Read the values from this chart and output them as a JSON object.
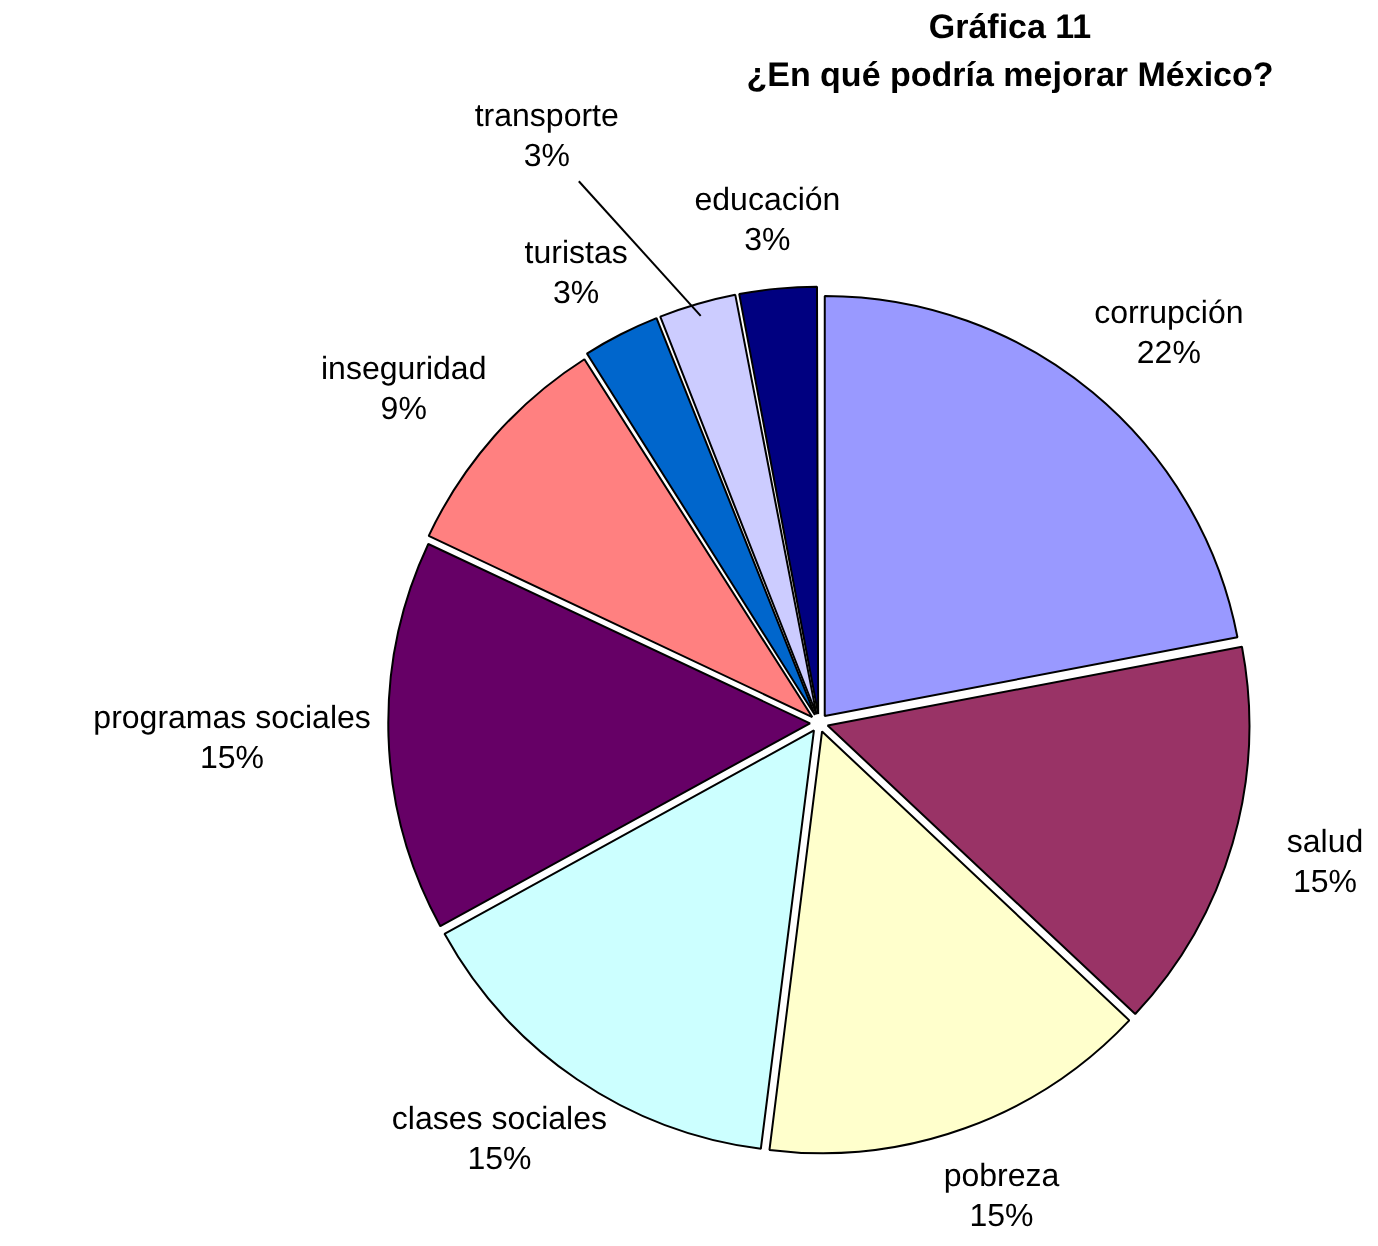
{
  "chart_data": {
    "type": "pie",
    "title": "Gráfica 11",
    "subtitle": "¿En qué podría mejorar México?",
    "categories": [
      "corrupción",
      "salud",
      "pobreza",
      "clases sociales",
      "programas sociales",
      "inseguridad",
      "turistas",
      "transporte",
      "educación"
    ],
    "values": [
      22,
      15,
      15,
      15,
      15,
      9,
      3,
      3,
      3
    ],
    "value_labels": [
      "22%",
      "15%",
      "15%",
      "15%",
      "15%",
      "9%",
      "3%",
      "3%",
      "3%"
    ],
    "colors": [
      "#9999ff",
      "#993366",
      "#ffffcc",
      "#ccffff",
      "#660066",
      "#ff8080",
      "#0066cc",
      "#ccccff",
      "#000080"
    ],
    "legend": false
  }
}
